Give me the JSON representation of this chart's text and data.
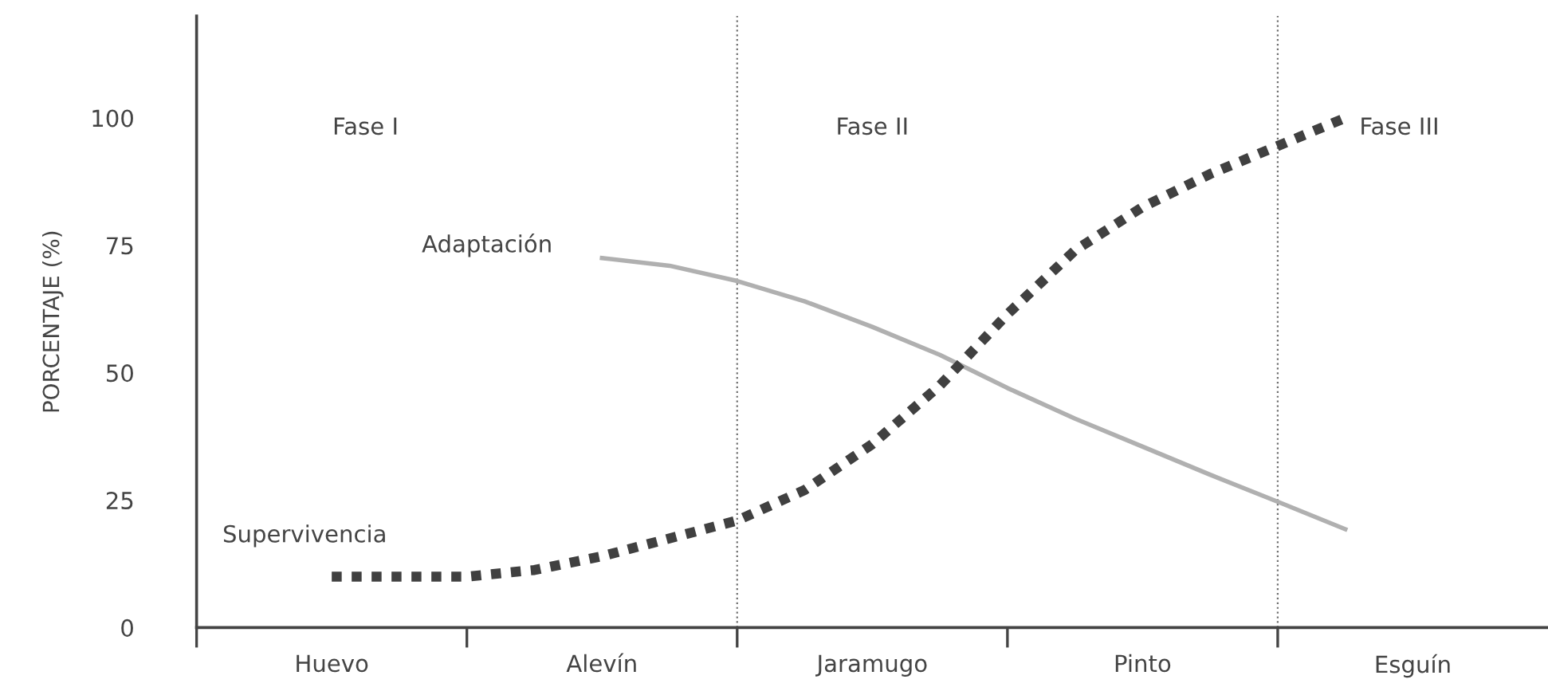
{
  "chart_data": {
    "type": "line",
    "ylabel": "PORCENTAJE (%)",
    "categories": [
      "Huevo",
      null,
      null,
      null,
      "Alevín",
      null,
      null,
      null,
      "Jaramugo",
      null,
      null,
      null,
      "Pinto",
      null,
      null,
      null,
      "Esguín"
    ],
    "ylim": [
      0,
      120
    ],
    "yticks": [
      0,
      25,
      50,
      75,
      100
    ],
    "grid": false,
    "legend": false,
    "series": [
      {
        "name": "Adaptación",
        "color": "#b0b0b0",
        "line_style": "solid",
        "values": [
          null,
          null,
          null,
          null,
          72.5,
          71,
          68,
          64,
          59,
          53.5,
          47,
          41,
          35.5,
          30,
          24.7,
          19.3,
          null
        ]
      },
      {
        "name": "Supervivencia",
        "color": "#404040",
        "line_style": "dotted",
        "values": [
          10,
          10,
          10,
          11.3,
          14,
          17.5,
          21,
          27,
          36,
          47.5,
          61.5,
          74,
          82.5,
          89,
          94.5,
          100,
          null
        ]
      }
    ],
    "annotations": [
      "Fase I",
      "Fase II",
      "Fase III"
    ]
  }
}
